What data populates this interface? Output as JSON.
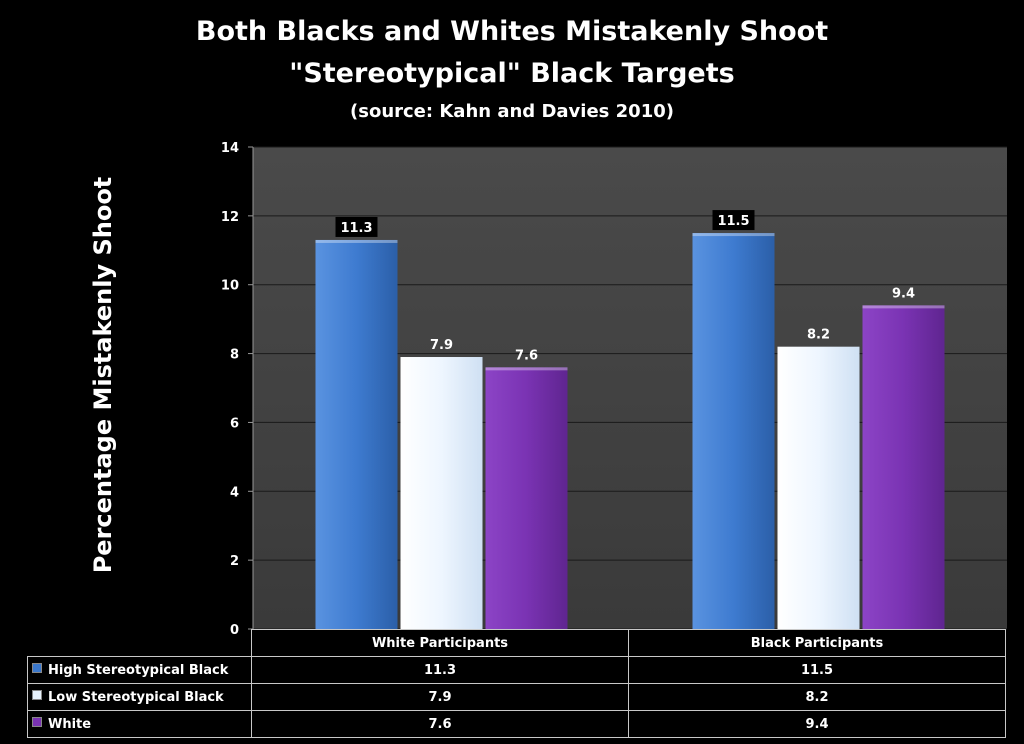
{
  "chart_data": {
    "type": "bar",
    "title": "Both Blacks and Whites Mistakenly Shoot",
    "subtitle": "\"Stereotypical\" Black Targets",
    "source": "(source: Kahn and Davies 2010)",
    "ylabel": "Percentage Mistakenly Shoot",
    "xlabel": "",
    "ylim": [
      0,
      14
    ],
    "yticks": [
      0,
      2,
      4,
      6,
      8,
      10,
      12,
      14
    ],
    "grid": true,
    "categories": [
      "White Participants",
      "Black Participants"
    ],
    "series": [
      {
        "name": "High Stereotypical Black",
        "values": [
          11.3,
          11.5
        ],
        "color": "#3b78cc"
      },
      {
        "name": "Low Stereotypical Black",
        "values": [
          7.9,
          8.2
        ],
        "color": "#e8f2fc"
      },
      {
        "name": "White",
        "values": [
          7.6,
          9.4
        ],
        "color": "#7a33b3"
      }
    ],
    "data_labels": [
      [
        "11.3",
        "11.5"
      ],
      [
        "7.9",
        "8.2"
      ],
      [
        "7.6",
        "9.4"
      ]
    ],
    "data_table": [
      [
        "11.3",
        "11.5"
      ],
      [
        "7.9",
        "8.2"
      ],
      [
        "7.6",
        "9.4"
      ]
    ]
  }
}
